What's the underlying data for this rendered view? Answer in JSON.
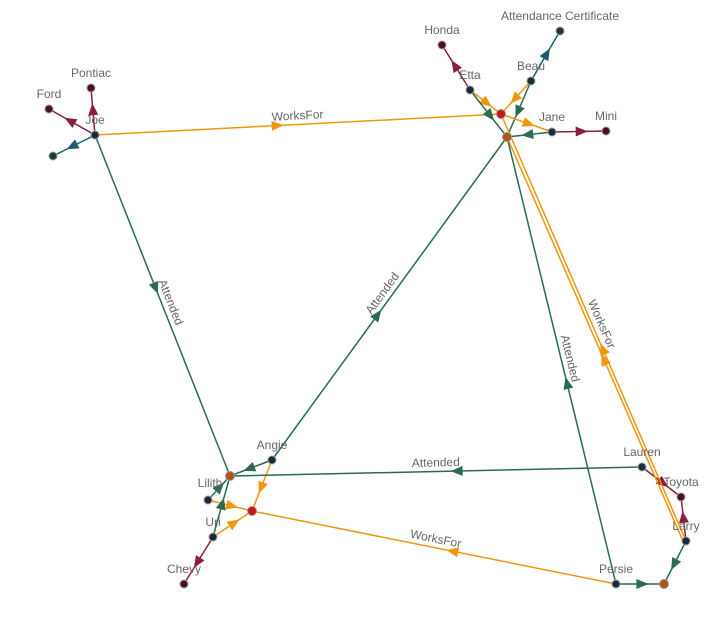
{
  "colors": {
    "attended": "#2a6b52",
    "works_for": "#f0960e",
    "owns_car": "#8b1e3f",
    "certificate": "#1f5c6b",
    "person_node": "#1a2a3a",
    "car_node": "#4a0f2e",
    "certificate_node": "#1c3a2e",
    "school_node": "#b0521a",
    "company_node": "#c8141a"
  },
  "nodes": [
    {
      "label": "Joe",
      "kind": "person"
    },
    {
      "label": "Ford",
      "kind": "car"
    },
    {
      "label": "Pontiac",
      "kind": "car"
    },
    {
      "label": "",
      "kind": "certificate"
    },
    {
      "label": "Honda",
      "kind": "car"
    },
    {
      "label": "Etta",
      "kind": "person"
    },
    {
      "label": "Attendance Certificate",
      "kind": "certificate"
    },
    {
      "label": "Beau",
      "kind": "person"
    },
    {
      "label": "",
      "kind": "company"
    },
    {
      "label": "",
      "kind": "school"
    },
    {
      "label": "Jane",
      "kind": "person"
    },
    {
      "label": "Mini",
      "kind": "car"
    },
    {
      "label": "Angie",
      "kind": "person"
    },
    {
      "label": "",
      "kind": "school"
    },
    {
      "label": "Lilith",
      "kind": "person"
    },
    {
      "label": "",
      "kind": "company"
    },
    {
      "label": "Uri",
      "kind": "person"
    },
    {
      "label": "Chevy",
      "kind": "car"
    },
    {
      "label": "Lauren",
      "kind": "person"
    },
    {
      "label": "Toyota",
      "kind": "car"
    },
    {
      "label": "Larry",
      "kind": "person"
    },
    {
      "label": "Persie",
      "kind": "person"
    },
    {
      "label": "",
      "kind": "school"
    }
  ],
  "edges": [
    {
      "from": 0,
      "to": 1,
      "type": "owns_car",
      "label": ""
    },
    {
      "from": 0,
      "to": 2,
      "type": "owns_car",
      "label": ""
    },
    {
      "from": 0,
      "to": 3,
      "type": "certificate",
      "label": ""
    },
    {
      "from": 0,
      "to": 8,
      "type": "works_for",
      "label": "WorksFor"
    },
    {
      "from": 0,
      "to": 13,
      "type": "attended",
      "label": "Attended"
    },
    {
      "from": 5,
      "to": 4,
      "type": "owns_car",
      "label": ""
    },
    {
      "from": 5,
      "to": 8,
      "type": "works_for",
      "label": ""
    },
    {
      "from": 5,
      "to": 9,
      "type": "attended",
      "label": ""
    },
    {
      "from": 7,
      "to": 6,
      "type": "certificate",
      "label": ""
    },
    {
      "from": 7,
      "to": 8,
      "type": "works_for",
      "label": ""
    },
    {
      "from": 7,
      "to": 9,
      "type": "attended",
      "label": ""
    },
    {
      "from": 10,
      "to": 11,
      "type": "owns_car",
      "label": ""
    },
    {
      "from": 10,
      "to": 9,
      "type": "attended",
      "label": ""
    },
    {
      "from": 8,
      "to": 10,
      "type": "works_for",
      "label": ""
    },
    {
      "from": 12,
      "to": 9,
      "type": "attended",
      "label": "Attended"
    },
    {
      "from": 12,
      "to": 13,
      "type": "attended",
      "label": ""
    },
    {
      "from": 12,
      "to": 15,
      "type": "works_for",
      "label": ""
    },
    {
      "from": 14,
      "to": 13,
      "type": "attended",
      "label": ""
    },
    {
      "from": 14,
      "to": 15,
      "type": "works_for",
      "label": ""
    },
    {
      "from": 16,
      "to": 13,
      "type": "attended",
      "label": ""
    },
    {
      "from": 16,
      "to": 15,
      "type": "works_for",
      "label": ""
    },
    {
      "from": 16,
      "to": 17,
      "type": "owns_car",
      "label": ""
    },
    {
      "from": 18,
      "to": 13,
      "type": "attended",
      "label": "Attended"
    },
    {
      "from": 18,
      "to": 19,
      "type": "owns_car",
      "label": ""
    },
    {
      "from": 20,
      "to": 19,
      "type": "owns_car",
      "label": ""
    },
    {
      "from": 20,
      "to": 22,
      "type": "attended",
      "label": ""
    },
    {
      "from": 21,
      "to": 22,
      "type": "attended",
      "label": ""
    },
    {
      "from": 21,
      "to": 15,
      "type": "works_for",
      "label": "WorksFor"
    },
    {
      "from": 21,
      "to": 9,
      "type": "attended",
      "label": "Attended"
    },
    {
      "from": 20,
      "to": 8,
      "type": "works_for",
      "label": "WorksFor"
    },
    {
      "from": 20,
      "to": 9,
      "type": "works_for",
      "label": ""
    }
  ]
}
